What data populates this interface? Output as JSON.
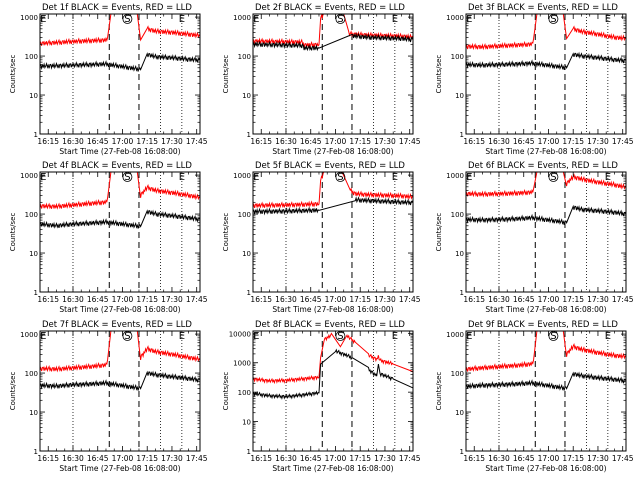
{
  "page": {
    "background": "#ffffff"
  },
  "colors": {
    "events": "#000000",
    "lld": "#ff0000",
    "axis": "#000000"
  },
  "chart_data": [
    {
      "type": "line",
      "title": "Det 1f BLACK = Events, RED = LLD",
      "xlabel": "Start Time (27-Feb-08 16:08:00)",
      "ylabel": "Counts/sec",
      "xlim": [
        "16:10",
        "17:47"
      ],
      "ylim": [
        1,
        1200
      ],
      "yscale": "log",
      "x_ticks": [
        "16:15",
        "16:30",
        "16:45",
        "17:00",
        "17:15",
        "17:30",
        "17:45"
      ],
      "y_ticks": [
        "1",
        "10",
        "100",
        "1000"
      ],
      "dotted_lines": [
        "16:30",
        "17:23",
        "17:36"
      ],
      "dashed_lines": [
        "16:52",
        "17:10"
      ],
      "markers": [
        {
          "label": "E",
          "at": "16:12"
        },
        {
          "label": "S",
          "at": "17:03"
        },
        {
          "label": "E",
          "at": "17:36"
        }
      ],
      "series": [
        {
          "name": "LLD",
          "x": [
            "16:10",
            "16:20",
            "16:30",
            "16:40",
            "16:50",
            "16:51",
            "16:53",
            "17:09",
            "17:11",
            "17:15",
            "17:20",
            "17:30",
            "17:40",
            "17:47"
          ],
          "values": [
            210,
            220,
            235,
            245,
            255,
            300,
            1200,
            1200,
            260,
            500,
            430,
            400,
            360,
            330
          ]
        },
        {
          "name": "Events",
          "x": [
            "16:10",
            "16:20",
            "16:30",
            "16:40",
            "16:50",
            "17:11",
            "17:15",
            "17:20",
            "17:30",
            "17:40",
            "17:47"
          ],
          "values": [
            55,
            56,
            58,
            60,
            62,
            45,
            110,
            95,
            90,
            82,
            78
          ]
        }
      ]
    },
    {
      "type": "line",
      "title": "Det 2f BLACK = Events, RED = LLD",
      "xlabel": "Start Time (27-Feb-08 16:08:00)",
      "ylabel": "Counts/sec",
      "xlim": [
        "16:10",
        "17:47"
      ],
      "ylim": [
        1,
        1200
      ],
      "yscale": "log",
      "x_ticks": [
        "16:15",
        "16:30",
        "16:45",
        "17:00",
        "17:15",
        "17:30",
        "17:45"
      ],
      "y_ticks": [
        "1",
        "10",
        "100",
        "1000"
      ],
      "dotted_lines": [
        "16:30",
        "17:23",
        "17:36"
      ],
      "dashed_lines": [
        "16:52",
        "17:10"
      ],
      "markers": [
        {
          "label": "E",
          "at": "16:12"
        },
        {
          "label": "S",
          "at": "17:03"
        },
        {
          "label": "E",
          "at": "17:36"
        }
      ],
      "series": [
        {
          "name": "LLD",
          "x": [
            "16:10",
            "16:30",
            "16:40",
            "16:41",
            "16:50",
            "16:51",
            "16:53",
            "17:05",
            "17:08",
            "17:10",
            "17:20",
            "17:30",
            "17:40",
            "17:47"
          ],
          "values": [
            240,
            230,
            225,
            190,
            195,
            900,
            1200,
            1200,
            380,
            360,
            340,
            330,
            320,
            300
          ]
        },
        {
          "name": "Events",
          "x": [
            "16:10",
            "16:30",
            "16:40",
            "16:41",
            "16:50",
            "17:10",
            "17:20",
            "17:30",
            "17:40",
            "17:47"
          ],
          "values": [
            200,
            190,
            185,
            160,
            160,
            330,
            300,
            290,
            280,
            260
          ]
        }
      ]
    },
    {
      "type": "line",
      "title": "Det 3f BLACK = Events, RED = LLD",
      "xlabel": "Start Time (27-Feb-08 16:08:00)",
      "ylabel": "Counts/sec",
      "xlim": [
        "16:10",
        "17:47"
      ],
      "ylim": [
        1,
        1200
      ],
      "yscale": "log",
      "x_ticks": [
        "16:15",
        "16:30",
        "16:45",
        "17:00",
        "17:15",
        "17:30",
        "17:45"
      ],
      "y_ticks": [
        "1",
        "10",
        "100",
        "1000"
      ],
      "dotted_lines": [
        "16:30",
        "17:23",
        "17:36"
      ],
      "dashed_lines": [
        "16:52",
        "17:10"
      ],
      "markers": [
        {
          "label": "E",
          "at": "16:12"
        },
        {
          "label": "S",
          "at": "17:03"
        },
        {
          "label": "E",
          "at": "17:36"
        }
      ],
      "series": [
        {
          "name": "LLD",
          "x": [
            "16:10",
            "16:20",
            "16:30",
            "16:40",
            "16:50",
            "16:51",
            "16:53",
            "17:09",
            "17:11",
            "17:15",
            "17:20",
            "17:30",
            "17:40",
            "17:47"
          ],
          "values": [
            175,
            170,
            180,
            190,
            200,
            280,
            1200,
            1200,
            280,
            500,
            420,
            360,
            300,
            280
          ]
        },
        {
          "name": "Events",
          "x": [
            "16:10",
            "16:20",
            "16:30",
            "16:40",
            "16:50",
            "17:11",
            "17:15",
            "17:20",
            "17:30",
            "17:40",
            "17:47"
          ],
          "values": [
            60,
            58,
            60,
            62,
            65,
            50,
            110,
            100,
            90,
            80,
            75
          ]
        }
      ]
    },
    {
      "type": "line",
      "title": "Det 4f BLACK = Events, RED = LLD",
      "xlabel": "Start Time (27-Feb-08 16:08:00)",
      "ylabel": "Counts/sec",
      "xlim": [
        "16:10",
        "17:47"
      ],
      "ylim": [
        1,
        1200
      ],
      "yscale": "log",
      "x_ticks": [
        "16:15",
        "16:30",
        "16:45",
        "17:00",
        "17:15",
        "17:30",
        "17:45"
      ],
      "y_ticks": [
        "1",
        "10",
        "100",
        "1000"
      ],
      "dotted_lines": [
        "16:30",
        "17:23",
        "17:36"
      ],
      "dashed_lines": [
        "16:52",
        "17:10"
      ],
      "markers": [
        {
          "label": "E",
          "at": "16:12"
        },
        {
          "label": "S",
          "at": "17:03"
        },
        {
          "label": "E",
          "at": "17:36"
        }
      ],
      "series": [
        {
          "name": "LLD",
          "x": [
            "16:10",
            "16:20",
            "16:30",
            "16:40",
            "16:50",
            "16:51",
            "16:53",
            "17:09",
            "17:11",
            "17:15",
            "17:20",
            "17:30",
            "17:40",
            "17:47"
          ],
          "values": [
            160,
            155,
            170,
            185,
            200,
            260,
            1200,
            1200,
            300,
            480,
            400,
            350,
            300,
            260
          ]
        },
        {
          "name": "Events",
          "x": [
            "16:10",
            "16:20",
            "16:30",
            "16:40",
            "16:50",
            "17:11",
            "17:15",
            "17:20",
            "17:30",
            "17:40",
            "17:47"
          ],
          "values": [
            55,
            50,
            55,
            58,
            62,
            48,
            115,
            100,
            90,
            80,
            72
          ]
        }
      ]
    },
    {
      "type": "line",
      "title": "Det 5f BLACK = Events, RED = LLD",
      "xlabel": "Start Time (27-Feb-08 16:08:00)",
      "ylabel": "Counts/sec",
      "xlim": [
        "16:10",
        "17:47"
      ],
      "ylim": [
        1,
        1200
      ],
      "yscale": "log",
      "x_ticks": [
        "16:15",
        "16:30",
        "16:45",
        "17:00",
        "17:15",
        "17:30",
        "17:45"
      ],
      "y_ticks": [
        "1",
        "10",
        "100",
        "1000"
      ],
      "dotted_lines": [
        "16:30",
        "17:23",
        "17:36"
      ],
      "dashed_lines": [
        "16:52",
        "17:10"
      ],
      "markers": [
        {
          "label": "E",
          "at": "16:12"
        },
        {
          "label": "S",
          "at": "17:03"
        },
        {
          "label": "E",
          "at": "17:36"
        }
      ],
      "series": [
        {
          "name": "LLD",
          "x": [
            "16:10",
            "16:30",
            "16:50",
            "16:51",
            "16:53",
            "17:04",
            "17:09",
            "17:12",
            "17:20",
            "17:30",
            "17:40",
            "17:47"
          ],
          "values": [
            165,
            170,
            180,
            700,
            1200,
            1200,
            400,
            330,
            310,
            300,
            290,
            270
          ]
        },
        {
          "name": "Events",
          "x": [
            "16:10",
            "16:30",
            "16:50",
            "17:12",
            "17:20",
            "17:30",
            "17:40",
            "17:47"
          ],
          "values": [
            115,
            118,
            125,
            230,
            220,
            210,
            200,
            195
          ]
        }
      ]
    },
    {
      "type": "line",
      "title": "Det 6f BLACK = Events, RED = LLD",
      "xlabel": "Start Time (27-Feb-08 16:08:00)",
      "ylabel": "Counts/sec",
      "xlim": [
        "16:10",
        "17:47"
      ],
      "ylim": [
        1,
        1200
      ],
      "yscale": "log",
      "x_ticks": [
        "16:15",
        "16:30",
        "16:45",
        "17:00",
        "17:15",
        "17:30",
        "17:45"
      ],
      "y_ticks": [
        "1",
        "10",
        "100",
        "1000"
      ],
      "dotted_lines": [
        "16:30",
        "17:23",
        "17:36"
      ],
      "dashed_lines": [
        "16:52",
        "17:10"
      ],
      "markers": [
        {
          "label": "E",
          "at": "16:12"
        },
        {
          "label": "S",
          "at": "17:03"
        },
        {
          "label": "E",
          "at": "17:36"
        }
      ],
      "series": [
        {
          "name": "LLD",
          "x": [
            "16:10",
            "16:20",
            "16:30",
            "16:40",
            "16:50",
            "16:51",
            "16:53",
            "17:09",
            "17:11",
            "17:15",
            "17:20",
            "17:30",
            "17:40",
            "17:47"
          ],
          "values": [
            330,
            320,
            330,
            340,
            360,
            450,
            1200,
            1200,
            600,
            900,
            780,
            650,
            560,
            480
          ]
        },
        {
          "name": "Events",
          "x": [
            "16:10",
            "16:20",
            "16:30",
            "16:40",
            "16:50",
            "17:11",
            "17:15",
            "17:20",
            "17:30",
            "17:40",
            "17:47"
          ],
          "values": [
            72,
            70,
            72,
            75,
            80,
            60,
            150,
            130,
            120,
            110,
            100
          ]
        }
      ]
    },
    {
      "type": "line",
      "title": "Det 7f BLACK = Events, RED = LLD",
      "xlabel": "Start Time (27-Feb-08 16:08:00)",
      "ylabel": "Counts/sec",
      "xlim": [
        "16:10",
        "17:47"
      ],
      "ylim": [
        1,
        1200
      ],
      "yscale": "log",
      "x_ticks": [
        "16:15",
        "16:30",
        "16:45",
        "17:00",
        "17:15",
        "17:30",
        "17:45"
      ],
      "y_ticks": [
        "1",
        "10",
        "100",
        "1000"
      ],
      "dotted_lines": [
        "16:30",
        "17:23",
        "17:36"
      ],
      "dashed_lines": [
        "16:52",
        "17:10"
      ],
      "markers": [
        {
          "label": "E",
          "at": "16:12"
        },
        {
          "label": "S",
          "at": "17:03"
        },
        {
          "label": "E",
          "at": "17:36"
        }
      ],
      "series": [
        {
          "name": "LLD",
          "x": [
            "16:10",
            "16:20",
            "16:30",
            "16:40",
            "16:50",
            "16:51",
            "16:53",
            "17:09",
            "17:11",
            "17:15",
            "17:20",
            "17:30",
            "17:40",
            "17:47"
          ],
          "values": [
            130,
            125,
            135,
            145,
            160,
            220,
            1200,
            1200,
            250,
            420,
            350,
            300,
            250,
            220
          ]
        },
        {
          "name": "Events",
          "x": [
            "16:10",
            "16:20",
            "16:30",
            "16:40",
            "16:50",
            "17:11",
            "17:15",
            "17:20",
            "17:30",
            "17:40",
            "17:47"
          ],
          "values": [
            48,
            46,
            50,
            52,
            55,
            40,
            100,
            90,
            80,
            72,
            65
          ]
        }
      ]
    },
    {
      "type": "line",
      "title": "Det 8f BLACK = Events, RED = LLD",
      "xlabel": "Start Time (27-Feb-08 16:08:00)",
      "ylabel": "Counts/sec",
      "xlim": [
        "16:10",
        "17:47"
      ],
      "ylim": [
        1,
        12000
      ],
      "yscale": "log",
      "x_ticks": [
        "16:15",
        "16:30",
        "16:45",
        "17:00",
        "17:15",
        "17:30",
        "17:45"
      ],
      "y_ticks": [
        "1",
        "10",
        "100",
        "1000",
        "10000"
      ],
      "dotted_lines": [
        "16:30",
        "17:23",
        "17:36"
      ],
      "dashed_lines": [
        "16:52",
        "17:10"
      ],
      "markers": [
        {
          "label": "E",
          "at": "16:12"
        },
        {
          "label": "S",
          "at": "17:03"
        },
        {
          "label": "E",
          "at": "17:36"
        }
      ],
      "series": [
        {
          "name": "LLD",
          "x": [
            "16:10",
            "16:20",
            "16:30",
            "16:40",
            "16:50",
            "16:51",
            "16:53",
            "16:58",
            "17:03",
            "17:07",
            "17:12",
            "17:20",
            "17:25",
            "17:26",
            "17:27",
            "17:35",
            "17:47"
          ],
          "values": [
            280,
            240,
            250,
            280,
            320,
            1500,
            6000,
            9000,
            3500,
            8000,
            5000,
            1800,
            1300,
            1600,
            1200,
            900,
            500
          ]
        },
        {
          "name": "Events",
          "x": [
            "16:10",
            "16:20",
            "16:30",
            "16:40",
            "16:50",
            "16:51",
            "17:00",
            "17:10",
            "17:20",
            "17:25",
            "17:26",
            "17:27",
            "17:35",
            "17:47"
          ],
          "values": [
            90,
            75,
            70,
            80,
            95,
            900,
            2500,
            1500,
            600,
            350,
            900,
            420,
            280,
            140
          ]
        }
      ]
    },
    {
      "type": "line",
      "title": "Det 9f BLACK = Events, RED = LLD",
      "xlabel": "Start Time (27-Feb-08 16:08:00)",
      "ylabel": "Counts/sec",
      "xlim": [
        "16:10",
        "17:47"
      ],
      "ylim": [
        1,
        1200
      ],
      "yscale": "log",
      "x_ticks": [
        "16:15",
        "16:30",
        "16:45",
        "17:00",
        "17:15",
        "17:30",
        "17:45"
      ],
      "y_ticks": [
        "1",
        "10",
        "100",
        "1000"
      ],
      "dotted_lines": [
        "16:30",
        "17:23",
        "17:36"
      ],
      "dashed_lines": [
        "16:52",
        "17:10"
      ],
      "markers": [
        {
          "label": "E",
          "at": "16:12"
        },
        {
          "label": "S",
          "at": "17:03"
        },
        {
          "label": "E",
          "at": "17:36"
        }
      ],
      "series": [
        {
          "name": "LLD",
          "x": [
            "16:10",
            "16:20",
            "16:30",
            "16:40",
            "16:50",
            "16:51",
            "16:53",
            "17:09",
            "17:11",
            "17:15",
            "17:20",
            "17:30",
            "17:40",
            "17:47"
          ],
          "values": [
            125,
            135,
            145,
            155,
            170,
            220,
            1200,
            1200,
            300,
            480,
            400,
            330,
            280,
            260
          ]
        },
        {
          "name": "Events",
          "x": [
            "16:10",
            "16:20",
            "16:30",
            "16:40",
            "16:50",
            "17:11",
            "17:15",
            "17:20",
            "17:30",
            "17:40",
            "17:47"
          ],
          "values": [
            45,
            48,
            50,
            52,
            55,
            40,
            95,
            85,
            75,
            68,
            62
          ]
        }
      ]
    }
  ]
}
